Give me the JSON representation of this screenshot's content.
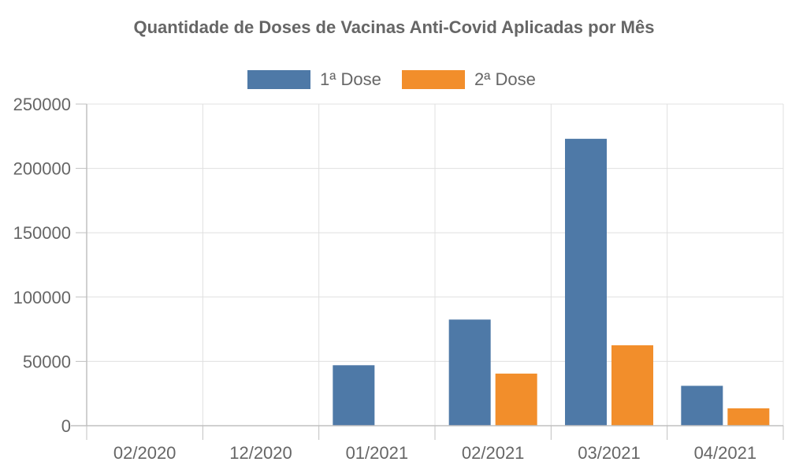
{
  "chart_data": {
    "type": "bar",
    "title": "Quantidade de Doses de Vacinas Anti-Covid Aplicadas por Mês",
    "categories": [
      "02/2020",
      "12/2020",
      "01/2021",
      "02/2021",
      "03/2021",
      "04/2021"
    ],
    "series": [
      {
        "name": "1ª Dose",
        "color": "#4e79a7",
        "values": [
          0,
          0,
          47000,
          82500,
          223000,
          31000
        ]
      },
      {
        "name": "2ª Dose",
        "color": "#f28e2b",
        "values": [
          0,
          0,
          0,
          40500,
          62500,
          13500
        ]
      }
    ],
    "ylim": [
      0,
      250000
    ],
    "yticks": [
      0,
      50000,
      100000,
      150000,
      200000,
      250000
    ],
    "grid": true,
    "legend": "top"
  }
}
